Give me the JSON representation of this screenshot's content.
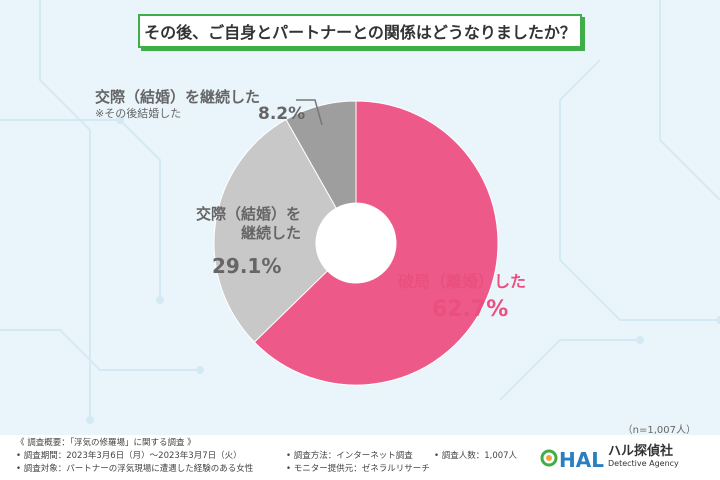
{
  "title": "その後、ご自身とパートナーとの関係はどうなりましたか？",
  "sample_note": "（n=1,007人）",
  "chart_data": {
    "type": "pie",
    "categories": [
      "破局（離婚）した",
      "交際（結婚）を継続した",
      "交際（結婚）を継続した ※その後結婚した"
    ],
    "values": [
      62.7,
      29.1,
      8.2
    ],
    "colors": [
      "#ed5a89",
      "#c8c8c8",
      "#9e9e9e"
    ]
  },
  "labels": {
    "breakup": {
      "text": "破局（離婚）した",
      "value": "62.7%"
    },
    "continued": {
      "line1": "交際（結婚）を",
      "line2": "継続した",
      "value": "29.1%"
    },
    "married": {
      "text": "交際（結婚）を継続した",
      "note": "※その後結婚した",
      "value": "8.2%"
    }
  },
  "footer": {
    "overview": "《 調査概要：「浮気の修羅場」に関する調査 》",
    "period": "• 調査期間：2023年3月6日（月）～2023年3月7日（火）",
    "target": "• 調査対象：パートナーの浮気現場に遭遇した経験のある女性",
    "method": "• 調査方法：インターネット調査",
    "count": "• 調査人数：1,007人",
    "provider": "• モニター提供元：ゼネラルリサーチ"
  },
  "logo": {
    "mark": "HAL",
    "name": "ハル探偵社",
    "sub": "Detective Agency"
  }
}
